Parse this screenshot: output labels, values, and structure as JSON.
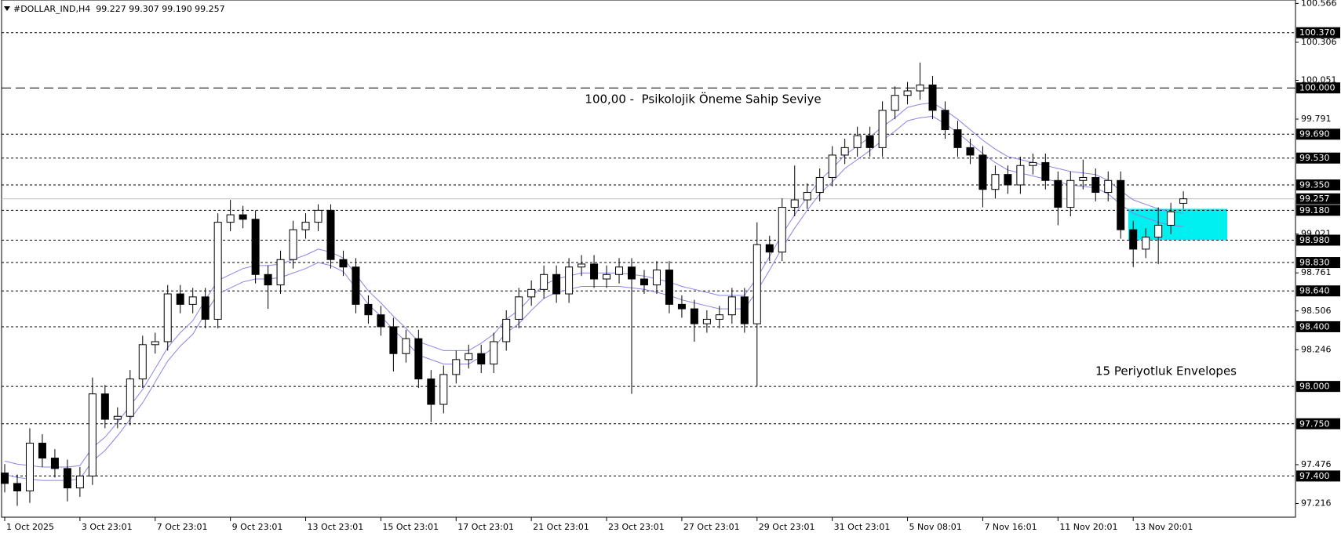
{
  "chart_data": {
    "type": "candlestick",
    "header": "#DOLLAR_IND,H4  99.227 99.307 99.190 99.257",
    "annotations": [
      {
        "text": "100,00 -  Psikolojik Öneme Sahip Seviye",
        "color": "#1e9a1e"
      },
      {
        "text": "15 Periyotluk Envelopes",
        "color": "#4b4ba6"
      }
    ],
    "categories": [
      "1 Oct 2025",
      null,
      null,
      null,
      null,
      null,
      "3 Oct 23:01",
      null,
      null,
      null,
      null,
      null,
      "7 Oct 23:01",
      null,
      null,
      null,
      null,
      null,
      "9 Oct 23:01",
      null,
      null,
      null,
      null,
      null,
      "13 Oct 23:01",
      null,
      null,
      null,
      null,
      null,
      "15 Oct 23:01",
      null,
      null,
      null,
      null,
      null,
      "17 Oct 23:01",
      null,
      null,
      null,
      null,
      null,
      "21 Oct 23:01",
      null,
      null,
      null,
      null,
      null,
      "23 Oct 23:01",
      null,
      null,
      null,
      null,
      null,
      "27 Oct 23:01",
      null,
      null,
      null,
      null,
      null,
      "29 Oct 23:01",
      null,
      null,
      null,
      null,
      null,
      "31 Oct 23:01",
      null,
      null,
      null,
      null,
      null,
      "5 Nov 08:01",
      null,
      null,
      null,
      null,
      null,
      "7 Nov 16:01",
      null,
      null,
      null,
      null,
      null,
      "11 Nov 20:01",
      null,
      null,
      null,
      null,
      null,
      "13 Nov 20:01",
      null,
      null,
      null,
      null
    ],
    "open": [
      97.42,
      97.35,
      97.3,
      97.62,
      97.52,
      97.45,
      97.32,
      97.4,
      97.95,
      97.78,
      97.8,
      98.05,
      98.28,
      98.3,
      98.62,
      98.55,
      98.6,
      98.45,
      99.1,
      99.15,
      99.12,
      98.75,
      98.68,
      98.85,
      99.05,
      99.1,
      99.18,
      98.85,
      98.8,
      98.55,
      98.48,
      98.4,
      98.22,
      98.32,
      98.05,
      97.88,
      98.08,
      98.18,
      98.22,
      98.15,
      98.3,
      98.45,
      98.6,
      98.65,
      98.75,
      98.62,
      98.8,
      98.82,
      98.72,
      98.75,
      98.8,
      98.72,
      98.68,
      98.78,
      98.55,
      98.52,
      98.42,
      98.45,
      98.48,
      98.6,
      98.42,
      98.95,
      98.9,
      99.2,
      99.25,
      99.3,
      99.4,
      99.55,
      99.6,
      99.68,
      99.6,
      99.85,
      99.95,
      99.98,
      100.02,
      99.85,
      99.72,
      99.6,
      99.55,
      99.32,
      99.42,
      99.35,
      99.48,
      99.5,
      99.38,
      99.2,
      99.38,
      99.4,
      99.3,
      99.38,
      99.05,
      98.92,
      99.0,
      99.08,
      99.227
    ],
    "high": [
      97.48,
      97.41,
      97.72,
      97.68,
      97.58,
      97.51,
      97.46,
      98.06,
      98.01,
      97.86,
      98.11,
      98.34,
      98.36,
      98.68,
      98.68,
      98.66,
      98.66,
      99.16,
      99.25,
      99.21,
      99.18,
      98.81,
      98.91,
      99.11,
      99.16,
      99.22,
      99.22,
      98.91,
      98.86,
      98.61,
      98.54,
      98.46,
      98.38,
      98.38,
      98.11,
      98.14,
      98.24,
      98.28,
      98.28,
      98.36,
      98.51,
      98.66,
      98.71,
      98.81,
      98.81,
      98.86,
      98.88,
      98.88,
      98.81,
      98.86,
      98.86,
      98.78,
      98.84,
      98.84,
      98.61,
      98.58,
      98.51,
      98.54,
      98.66,
      98.66,
      99.1,
      99.01,
      99.26,
      99.48,
      99.36,
      99.46,
      99.61,
      99.66,
      99.74,
      99.74,
      99.91,
      100.01,
      100.04,
      100.17,
      100.08,
      99.91,
      99.78,
      99.66,
      99.61,
      99.48,
      99.48,
      99.54,
      99.56,
      99.56,
      99.44,
      99.44,
      99.52,
      99.46,
      99.44,
      99.44,
      99.11,
      99.06,
      99.2,
      99.23,
      99.307
    ],
    "low": [
      97.29,
      97.2,
      97.22,
      97.46,
      97.39,
      97.23,
      97.26,
      97.34,
      97.72,
      97.72,
      97.74,
      97.99,
      98.22,
      98.24,
      98.49,
      98.49,
      98.39,
      98.39,
      99.04,
      99.06,
      98.69,
      98.52,
      98.62,
      98.79,
      98.99,
      99.04,
      98.79,
      98.74,
      98.49,
      98.42,
      98.34,
      98.1,
      98.16,
      97.99,
      97.76,
      97.82,
      98.02,
      98.12,
      98.09,
      98.09,
      98.24,
      98.39,
      98.54,
      98.59,
      98.56,
      98.56,
      98.74,
      98.66,
      98.66,
      98.69,
      97.95,
      98.62,
      98.62,
      98.49,
      98.46,
      98.3,
      98.36,
      98.39,
      98.42,
      98.36,
      98.0,
      98.84,
      98.84,
      99.14,
      99.19,
      99.24,
      99.34,
      99.49,
      99.54,
      99.54,
      99.54,
      99.79,
      99.89,
      99.92,
      99.79,
      99.66,
      99.54,
      99.49,
      99.2,
      99.26,
      99.29,
      99.29,
      99.42,
      99.32,
      99.08,
      99.14,
      99.32,
      99.24,
      99.24,
      98.99,
      98.8,
      98.86,
      98.82,
      99.02,
      99.19
    ],
    "close": [
      97.35,
      97.3,
      97.62,
      97.52,
      97.45,
      97.32,
      97.4,
      97.95,
      97.78,
      97.8,
      98.05,
      98.28,
      98.3,
      98.62,
      98.55,
      98.6,
      98.45,
      99.1,
      99.15,
      99.12,
      98.75,
      98.68,
      98.85,
      99.05,
      99.1,
      99.18,
      98.85,
      98.8,
      98.55,
      98.48,
      98.4,
      98.22,
      98.32,
      98.05,
      97.88,
      98.08,
      98.18,
      98.22,
      98.15,
      98.3,
      98.45,
      98.6,
      98.65,
      98.75,
      98.62,
      98.8,
      98.82,
      98.72,
      98.75,
      98.8,
      98.72,
      98.68,
      98.78,
      98.55,
      98.52,
      98.42,
      98.45,
      98.48,
      98.6,
      98.42,
      98.95,
      98.9,
      99.2,
      99.25,
      99.3,
      99.4,
      99.55,
      99.6,
      99.68,
      99.6,
      99.85,
      99.95,
      99.98,
      100.02,
      99.85,
      99.72,
      99.6,
      99.55,
      99.32,
      99.42,
      99.35,
      99.48,
      99.5,
      99.38,
      99.2,
      99.38,
      99.4,
      99.3,
      99.38,
      99.05,
      98.92,
      99.0,
      99.08,
      99.17,
      99.257
    ],
    "up_color": "#ffffff",
    "down_color": "#000000",
    "outline_color": "#000000",
    "envelope_color": "#8a84e6",
    "envelope_upper": [
      97.5,
      97.48,
      97.47,
      97.46,
      97.46,
      97.46,
      97.47,
      97.59,
      97.66,
      97.76,
      97.87,
      97.98,
      98.12,
      98.26,
      98.36,
      98.44,
      98.58,
      98.71,
      98.75,
      98.79,
      98.81,
      98.81,
      98.82,
      98.85,
      98.88,
      98.92,
      98.9,
      98.86,
      98.75,
      98.64,
      98.56,
      98.47,
      98.39,
      98.3,
      98.27,
      98.24,
      98.24,
      98.24,
      98.29,
      98.35,
      98.45,
      98.51,
      98.6,
      98.68,
      98.72,
      98.74,
      98.76,
      98.76,
      98.76,
      98.76,
      98.75,
      98.74,
      98.72,
      98.7,
      98.67,
      98.65,
      98.63,
      98.61,
      98.61,
      98.61,
      98.73,
      98.87,
      99.02,
      99.15,
      99.27,
      99.38,
      99.46,
      99.55,
      99.61,
      99.67,
      99.74,
      99.8,
      99.87,
      99.89,
      99.9,
      99.85,
      99.79,
      99.72,
      99.65,
      99.59,
      99.54,
      99.52,
      99.5,
      99.48,
      99.46,
      99.44,
      99.43,
      99.42,
      99.38,
      99.31,
      99.25,
      99.22,
      99.19,
      99.17,
      99.16
    ],
    "envelope_lower": [
      97.41,
      97.39,
      97.38,
      97.37,
      97.37,
      97.37,
      97.38,
      97.5,
      97.57,
      97.67,
      97.78,
      97.89,
      98.03,
      98.17,
      98.27,
      98.35,
      98.49,
      98.62,
      98.66,
      98.7,
      98.72,
      98.72,
      98.73,
      98.76,
      98.79,
      98.83,
      98.81,
      98.77,
      98.66,
      98.55,
      98.47,
      98.38,
      98.3,
      98.21,
      98.18,
      98.15,
      98.15,
      98.15,
      98.2,
      98.26,
      98.36,
      98.42,
      98.51,
      98.59,
      98.63,
      98.65,
      98.67,
      98.67,
      98.67,
      98.67,
      98.66,
      98.65,
      98.63,
      98.61,
      98.58,
      98.56,
      98.54,
      98.52,
      98.52,
      98.52,
      98.64,
      98.78,
      98.93,
      99.06,
      99.18,
      99.29,
      99.37,
      99.46,
      99.52,
      99.58,
      99.65,
      99.71,
      99.78,
      99.8,
      99.81,
      99.76,
      99.7,
      99.63,
      99.56,
      99.5,
      99.45,
      99.43,
      99.41,
      99.39,
      99.37,
      99.35,
      99.34,
      99.33,
      99.29,
      99.22,
      99.16,
      99.13,
      99.1,
      99.08,
      99.07
    ],
    "ylim": [
      97.124,
      100.589
    ],
    "yticks": [
      100.566,
      100.306,
      100.051,
      99.791,
      99.021,
      98.761,
      98.506,
      98.246,
      97.476,
      97.216
    ],
    "psych_level": {
      "value": 100,
      "label": "100.000"
    },
    "levels": [
      {
        "value": 100.37,
        "label": "100.370"
      },
      {
        "value": 99.69,
        "label": "99.690"
      },
      {
        "value": 99.53,
        "label": "99.530"
      },
      {
        "value": 99.35,
        "label": "99.350"
      },
      {
        "value": 99.18,
        "label": "99.180"
      },
      {
        "value": 98.98,
        "label": "98.980"
      },
      {
        "value": 98.83,
        "label": "98.830"
      },
      {
        "value": 98.64,
        "label": "98.640"
      },
      {
        "value": 98.4,
        "label": "98.400"
      },
      {
        "value": 98,
        "label": "98.000"
      },
      {
        "value": 97.75,
        "label": "97.750"
      },
      {
        "value": 97.4,
        "label": "97.400"
      }
    ],
    "last_price": 99.257,
    "last_price_color": "#c0c0c0",
    "zone": {
      "ylim": [
        98.98,
        99.19
      ],
      "color": "#00f0f0"
    }
  }
}
